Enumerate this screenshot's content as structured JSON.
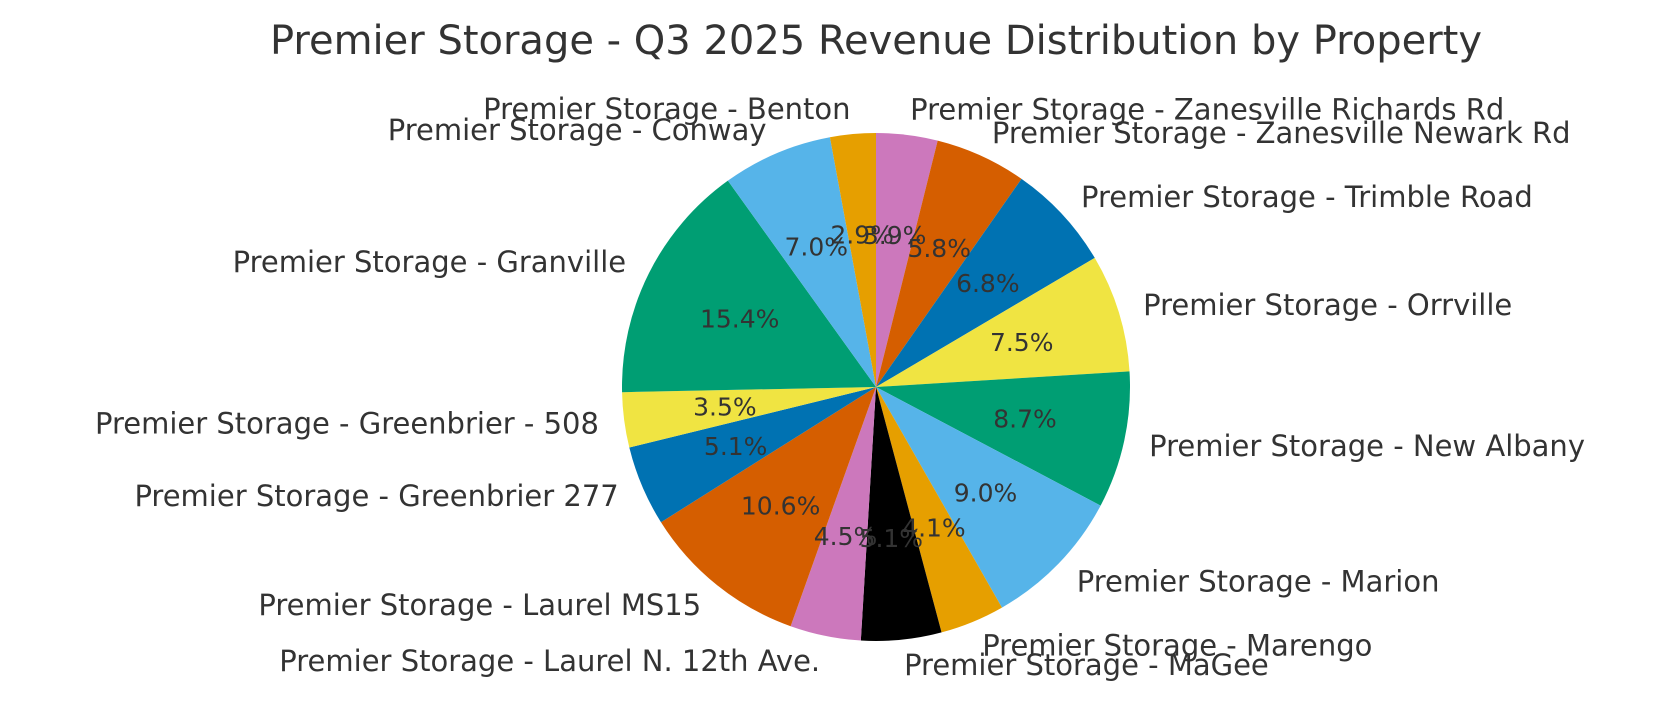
{
  "chart_data": {
    "type": "pie",
    "title": "Premier Storage - Q3 2025 Revenue Distribution by Property",
    "series": [
      {
        "values": [
          3.9,
          5.8,
          6.8,
          7.5,
          8.7,
          9.0,
          4.1,
          5.1,
          4.5,
          10.6,
          5.1,
          3.5,
          15.4,
          7.0,
          2.9
        ]
      }
    ],
    "categories": [
      "Premier Storage - Zanesville Richards Rd",
      "Premier Storage - Zanesville Newark Rd",
      "Premier Storage - Trimble Road",
      "Premier Storage - Orrville",
      "Premier Storage - New Albany",
      "Premier Storage - Marion",
      "Premier Storage - Marengo",
      "Premier Storage - MaGee",
      "Premier Storage - Laurel N. 12th Ave.",
      "Premier Storage - Laurel MS15",
      "Premier Storage - Greenbrier 277",
      "Premier Storage - Greenbrier - 508",
      "Premier Storage - Granville",
      "Premier Storage - Conway",
      "Premier Storage - Benton"
    ],
    "percent_labels": [
      "3.9%",
      "5.8%",
      "6.8%",
      "7.5%",
      "8.7%",
      "9.0%",
      "4.1%",
      "5.1%",
      "4.5%",
      "10.6%",
      "5.1%",
      "3.5%",
      "15.4%",
      "7.0%",
      "2.9%"
    ],
    "colors": [
      "#CC78BC",
      "#D55E00",
      "#0072B2",
      "#F0E442",
      "#009E73",
      "#56B4E9",
      "#E69F00",
      "#000000",
      "#CC78BC",
      "#D55E00",
      "#0072B2",
      "#F0E442",
      "#009E73",
      "#56B4E9",
      "#E69F00"
    ],
    "start_angle": "top",
    "direction": "clockwise",
    "legend": "none"
  }
}
